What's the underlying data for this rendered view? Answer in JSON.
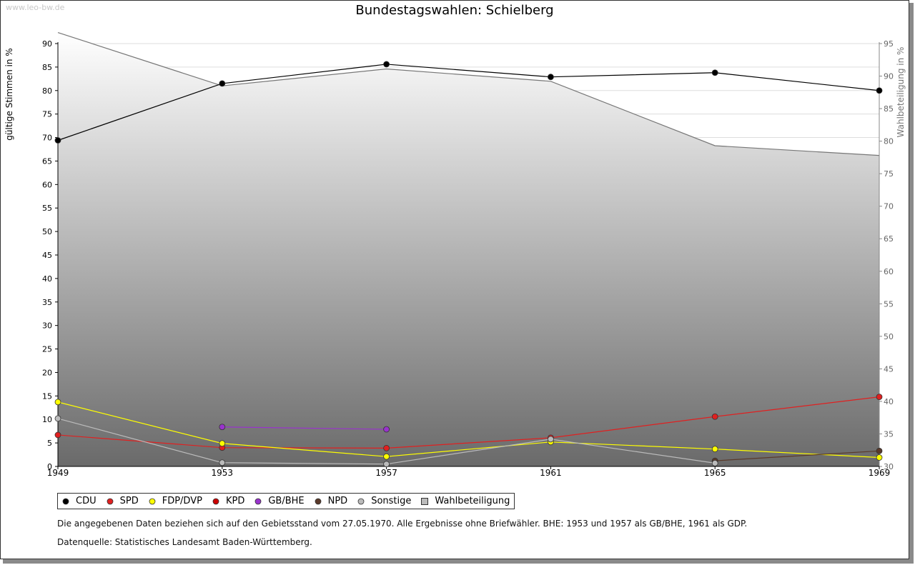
{
  "watermark": "www.leo-bw.de",
  "notes": {
    "line1": "Die angegebenen Daten beziehen sich auf den Gebietsstand vom 27.05.1970. Alle Ergebnisse ohne Briefwähler. BHE: 1953 und 1957 als GB/BHE, 1961 als GDP.",
    "line2": "Datenquelle: Statistisches Landesamt Baden-Württemberg."
  },
  "chart_data": {
    "type": "line",
    "title": "Bundestagswahlen: Schielberg",
    "ylabel": "gültige Stimmen in %",
    "y2label": "Wahlbeteiligung in %",
    "x": [
      1949,
      1953,
      1957,
      1961,
      1965,
      1969
    ],
    "x_ticks": [
      "1949",
      "1953",
      "1957",
      "1961",
      "1965",
      "1969"
    ],
    "ylim": [
      0,
      90
    ],
    "y_ticks": [
      0,
      5,
      10,
      15,
      20,
      25,
      30,
      35,
      40,
      45,
      50,
      55,
      60,
      65,
      70,
      75,
      80,
      85,
      90
    ],
    "y2lim": [
      30,
      95
    ],
    "y2_ticks": [
      30,
      35,
      40,
      45,
      50,
      55,
      60,
      65,
      70,
      75,
      80,
      85,
      90,
      95
    ],
    "grid": true,
    "legend_position": "bottom",
    "turnout": {
      "name": "Wahlbeteiligung",
      "values": [
        96.7,
        88.5,
        91.1,
        89.2,
        79.3,
        77.8
      ],
      "color": "#888888"
    },
    "series": [
      {
        "name": "CDU",
        "color": "#000000",
        "values": [
          69.4,
          81.5,
          85.6,
          82.9,
          83.8,
          80.0
        ]
      },
      {
        "name": "SPD",
        "color": "#e02020",
        "values": [
          6.7,
          4.0,
          3.9,
          6.1,
          10.6,
          14.8
        ]
      },
      {
        "name": "FDP/DVP",
        "color": "#ffff00",
        "values": [
          13.7,
          4.9,
          2.1,
          5.2,
          3.7,
          1.9
        ]
      },
      {
        "name": "KPD",
        "color": "#cc0000",
        "values": [
          null,
          null,
          null,
          null,
          null,
          null
        ]
      },
      {
        "name": "GB/BHE",
        "color": "#9933cc",
        "values": [
          null,
          8.4,
          7.9,
          null,
          null,
          null
        ]
      },
      {
        "name": "NPD",
        "color": "#5a3a2a",
        "values": [
          null,
          null,
          null,
          null,
          1.2,
          3.3
        ]
      },
      {
        "name": "Sonstige",
        "color": "#bbbbbb",
        "values": [
          10.2,
          0.8,
          0.5,
          5.8,
          0.7,
          null
        ]
      }
    ]
  }
}
